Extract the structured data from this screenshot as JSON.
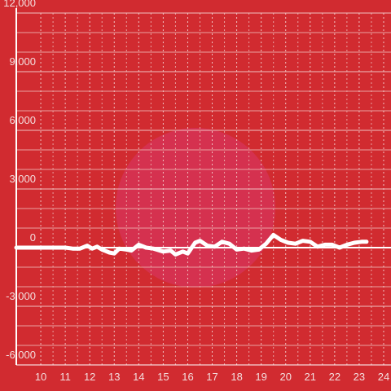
{
  "chart_data": {
    "type": "line",
    "x": [
      9,
      10,
      11,
      11.3,
      11.6,
      11.9,
      12.1,
      12.3,
      12.5,
      12.8,
      13.0,
      13.2,
      13.5,
      13.7,
      14,
      14.3,
      14.6,
      15,
      15.3,
      15.5,
      15.8,
      16,
      16.3,
      16.5,
      16.8,
      17.1,
      17.4,
      17.7,
      18,
      18.3,
      18.6,
      18.9,
      19.2,
      19.5,
      19.8,
      20.1,
      20.4,
      20.7,
      21,
      21.3,
      21.6,
      21.9,
      22.2,
      22.5,
      22.8,
      23.1,
      23.3
    ],
    "series": [
      {
        "color": "#ffffff",
        "values": [
          0,
          0,
          0,
          -50,
          -50,
          100,
          -50,
          50,
          -100,
          -250,
          -300,
          -50,
          -100,
          -150,
          150,
          0,
          -50,
          -200,
          -150,
          -350,
          -200,
          -300,
          250,
          350,
          100,
          50,
          300,
          200,
          -100,
          -50,
          -150,
          -100,
          200,
          650,
          400,
          250,
          200,
          350,
          300,
          50,
          150,
          150,
          0,
          150,
          250,
          300,
          300
        ]
      }
    ],
    "xlim": [
      9,
      24.3
    ],
    "xticks": [
      10,
      11,
      12,
      13,
      14,
      15,
      16,
      17,
      18,
      19,
      20,
      21,
      22,
      23,
      24
    ],
    "ylim": [
      -6000,
      12000
    ],
    "yticks": [
      {
        "value": -6000,
        "label": "-6,000"
      },
      {
        "value": -3000,
        "label": "-3,000"
      },
      0,
      {
        "value": 3000,
        "label": "3,000"
      },
      {
        "value": 6000,
        "label": "6,000"
      },
      {
        "value": 9000,
        "label": "9,000"
      },
      {
        "value": 12000,
        "label": "12,000"
      }
    ],
    "grid": true
  }
}
